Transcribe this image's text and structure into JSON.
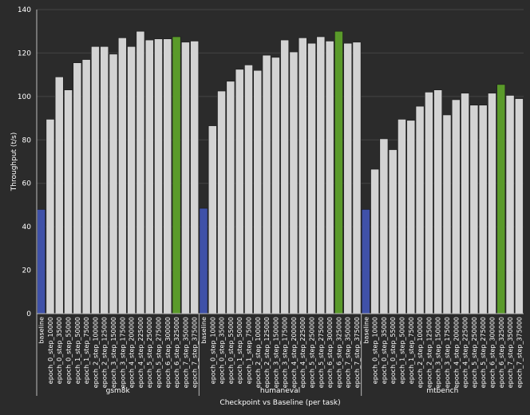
{
  "chart_data": {
    "type": "bar",
    "title": "",
    "xlabel": "Checkpoint vs Baseline (per task)",
    "ylabel": "Throughput (t/s)",
    "ylim": [
      0,
      140
    ],
    "yticks": [
      0,
      20,
      40,
      60,
      80,
      100,
      120,
      140
    ],
    "grid": true,
    "colors": {
      "baseline": "#3f51a8",
      "best": "#5a9a2a",
      "default": "#d3d3d3"
    },
    "groups": [
      {
        "name": "gsm8k",
        "best_index": 15,
        "categories": [
          "baseline",
          "epoch_0_step_10000",
          "epoch_0_step_35000",
          "epoch_0_step_55000",
          "epoch_1_step_50000",
          "epoch_1_step_75000",
          "epoch_2_step_100000",
          "epoch_2_step_125000",
          "epoch_3_step_150000",
          "epoch_3_step_175000",
          "epoch_4_step_200000",
          "epoch_4_step_225000",
          "epoch_5_step_250000",
          "epoch_5_step_275000",
          "epoch_6_step_300000",
          "epoch_6_step_325000",
          "epoch_7_step_350000",
          "epoch_7_step_375000"
        ],
        "values": [
          48,
          89.5,
          109,
          103,
          115.5,
          117,
          123,
          123,
          119.5,
          127,
          123,
          130,
          126,
          126.5,
          126.5,
          127.5,
          125,
          125.5
        ]
      },
      {
        "name": "humaneval",
        "best_index": 15,
        "categories": [
          "baseline",
          "epoch_0_step_10000",
          "epoch_0_step_35000",
          "epoch_0_step_55000",
          "epoch_1_step_50000",
          "epoch_1_step_75000",
          "epoch_2_step_100000",
          "epoch_2_step_125000",
          "epoch_3_step_150000",
          "epoch_3_step_175000",
          "epoch_4_step_200000",
          "epoch_4_step_225000",
          "epoch_5_step_250000",
          "epoch_5_step_275000",
          "epoch_6_step_300000",
          "epoch_6_step_325000",
          "epoch_7_step_350000",
          "epoch_7_step_375000"
        ],
        "values": [
          48.5,
          86.5,
          102.5,
          107,
          112.5,
          114.5,
          112,
          119,
          118,
          126,
          120.5,
          127,
          124.5,
          127.5,
          125.5,
          130,
          124.5,
          125
        ]
      },
      {
        "name": "mtbench",
        "best_index": 15,
        "categories": [
          "baseline",
          "epoch_0_step_10000",
          "epoch_0_step_35000",
          "epoch_0_step_55000",
          "epoch_1_step_50000",
          "epoch_1_step_75000",
          "epoch_2_step_100000",
          "epoch_2_step_125000",
          "epoch_3_step_150000",
          "epoch_3_step_175000",
          "epoch_4_step_200000",
          "epoch_4_step_225000",
          "epoch_5_step_250000",
          "epoch_5_step_275000",
          "epoch_6_step_300000",
          "epoch_6_step_325000",
          "epoch_7_step_350000",
          "epoch_7_step_375000"
        ],
        "values": [
          48,
          66.5,
          80.5,
          75.5,
          89.5,
          89,
          95.5,
          102,
          103,
          91.5,
          98.5,
          101.5,
          96,
          96,
          101.5,
          105.5,
          100.5,
          99
        ]
      }
    ]
  }
}
